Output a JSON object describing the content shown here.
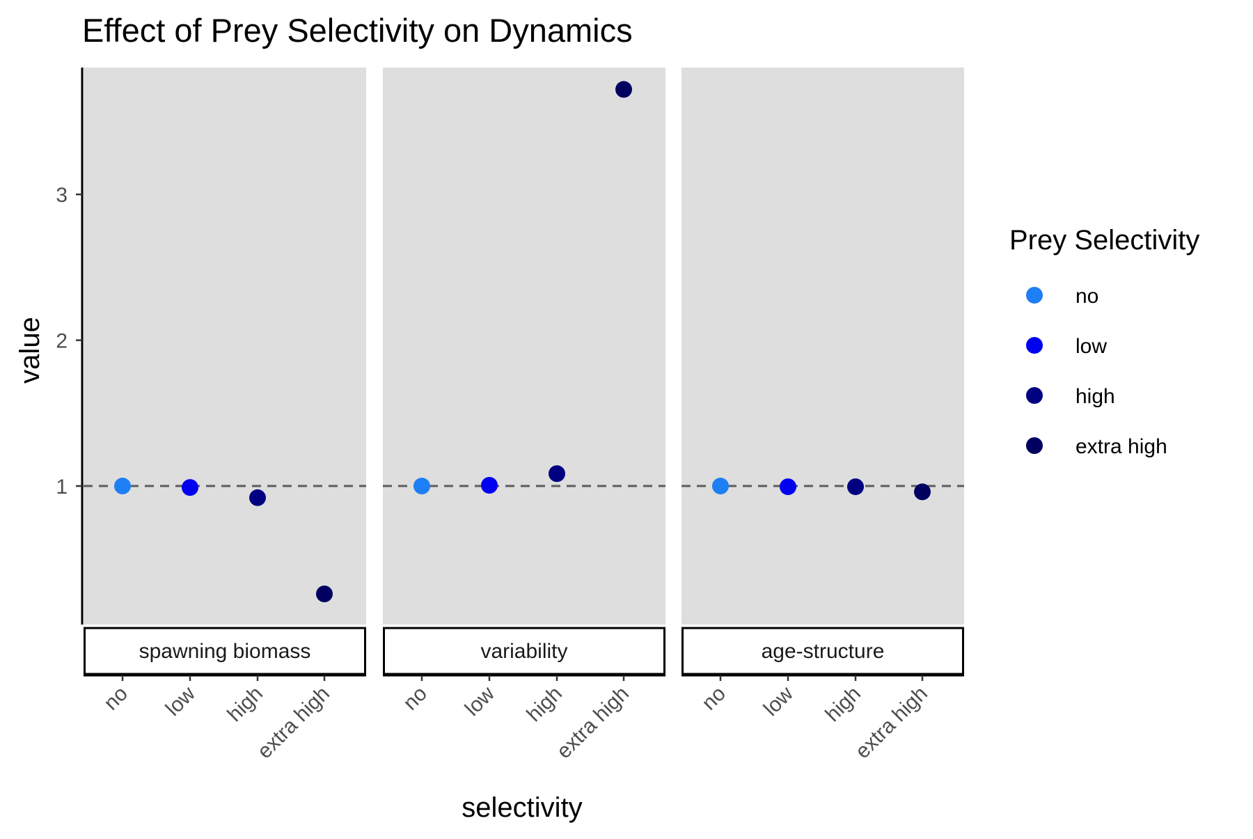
{
  "chart_data": {
    "type": "scatter",
    "title": "Effect of Prey Selectivity on Dynamics",
    "xlabel": "selectivity",
    "ylabel": "value",
    "categories": [
      "no",
      "low",
      "high",
      "extra high"
    ],
    "y_ticks": [
      "1",
      "2",
      "3"
    ],
    "ylim": [
      0.05,
      3.87
    ],
    "reference_line": 1,
    "panel_background": "#dedede",
    "legend": {
      "title": "Prey Selectivity",
      "placement": "right",
      "entries": [
        {
          "label": "no",
          "color": "#1e7ff5"
        },
        {
          "label": "low",
          "color": "#0000f0"
        },
        {
          "label": "high",
          "color": "#000080"
        },
        {
          "label": "extra high",
          "color": "#000060"
        }
      ]
    },
    "panels": [
      {
        "label": "spawning biomass",
        "values": [
          1.0,
          0.99,
          0.92,
          0.26
        ]
      },
      {
        "label": "variability",
        "values": [
          1.0,
          1.005,
          1.085,
          3.72
        ]
      },
      {
        "label": "age-structure",
        "values": [
          1.0,
          0.995,
          0.995,
          0.96
        ]
      }
    ]
  }
}
